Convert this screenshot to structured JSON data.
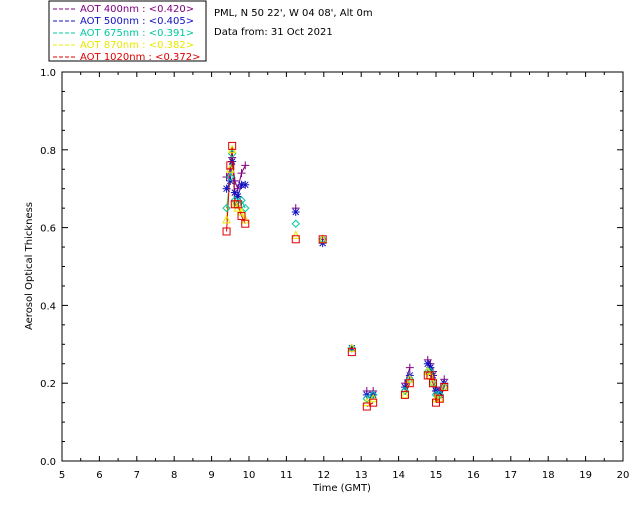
{
  "header": {
    "location": "PML, N 50 22', W 04 08', Alt 0m",
    "date": "Data from: 31 Oct 2021"
  },
  "chart_data": {
    "type": "scatter",
    "xlabel": "Time (GMT)",
    "ylabel": "Aerosol Optical Thickness",
    "xlim": [
      5,
      20
    ],
    "ylim": [
      0.0,
      1.0
    ],
    "x_ticks": [
      "5",
      "6",
      "7",
      "8",
      "9",
      "10",
      "11",
      "12",
      "13",
      "14",
      "15",
      "16",
      "17",
      "18",
      "19",
      "20"
    ],
    "y_ticks": [
      "0.0",
      "0.2",
      "0.4",
      "0.6",
      "0.8",
      "1.0"
    ],
    "legend_position": "top-left",
    "series": [
      {
        "name": "AOT  400nm : <0.420>",
        "color": "#800080",
        "marker": "plus",
        "x": [
          9.4,
          9.5,
          9.55,
          9.62,
          9.7,
          9.8,
          9.9,
          11.25,
          11.97,
          12.75,
          13.15,
          13.32,
          14.17,
          14.3,
          14.78,
          14.85,
          14.92,
          15.0,
          15.1,
          15.22
        ],
        "y": [
          0.73,
          0.75,
          0.78,
          0.72,
          0.7,
          0.74,
          0.76,
          0.65,
          0.57,
          0.29,
          0.18,
          0.18,
          0.2,
          0.24,
          0.26,
          0.25,
          0.23,
          0.19,
          0.18,
          0.21
        ]
      },
      {
        "name": "AOT  500nm : <0.405>",
        "color": "#1010c0",
        "marker": "asterisk",
        "x": [
          9.4,
          9.5,
          9.55,
          9.62,
          9.7,
          9.8,
          9.9,
          11.25,
          11.97,
          12.75,
          13.15,
          13.32,
          14.17,
          14.3,
          14.78,
          14.85,
          14.92,
          15.0,
          15.1,
          15.22
        ],
        "y": [
          0.7,
          0.72,
          0.77,
          0.69,
          0.68,
          0.71,
          0.71,
          0.64,
          0.56,
          0.29,
          0.17,
          0.17,
          0.19,
          0.22,
          0.25,
          0.24,
          0.22,
          0.18,
          0.17,
          0.2
        ]
      },
      {
        "name": "AOT  675nm : <0.391>",
        "color": "#00c8a0",
        "marker": "diamond",
        "x": [
          9.4,
          9.5,
          9.55,
          9.62,
          9.7,
          9.8,
          9.9,
          11.25,
          11.97,
          12.75,
          13.15,
          13.32,
          14.17,
          14.3,
          14.78,
          14.85,
          14.92,
          15.0,
          15.1,
          15.22
        ],
        "y": [
          0.65,
          0.73,
          0.79,
          0.67,
          0.66,
          0.67,
          0.65,
          0.61,
          0.57,
          0.29,
          0.16,
          0.17,
          0.18,
          0.21,
          0.23,
          0.23,
          0.2,
          0.17,
          0.17,
          0.19
        ]
      },
      {
        "name": "AOT  870nm : <0.382>",
        "color": "#e8e800",
        "marker": "triangle",
        "x": [
          9.4,
          9.5,
          9.55,
          9.62,
          9.7,
          9.8,
          9.9,
          11.25,
          11.97,
          12.75,
          13.15,
          13.32,
          14.17,
          14.3,
          14.78,
          14.85,
          14.92,
          15.0,
          15.1,
          15.22
        ],
        "y": [
          0.62,
          0.75,
          0.8,
          0.66,
          0.65,
          0.64,
          0.62,
          0.58,
          0.57,
          0.29,
          0.15,
          0.16,
          0.17,
          0.21,
          0.23,
          0.22,
          0.2,
          0.16,
          0.16,
          0.19
        ]
      },
      {
        "name": "AOT 1020nm : <0.372>",
        "color": "#e00000",
        "marker": "square",
        "x": [
          9.4,
          9.5,
          9.55,
          9.62,
          9.7,
          9.8,
          9.9,
          11.25,
          11.97,
          12.75,
          13.15,
          13.32,
          14.17,
          14.3,
          14.78,
          14.85,
          14.92,
          15.0,
          15.1,
          15.22
        ],
        "y": [
          0.59,
          0.76,
          0.81,
          0.66,
          0.66,
          0.63,
          0.61,
          0.57,
          0.57,
          0.28,
          0.14,
          0.15,
          0.17,
          0.2,
          0.22,
          0.22,
          0.2,
          0.15,
          0.16,
          0.19
        ]
      }
    ]
  }
}
